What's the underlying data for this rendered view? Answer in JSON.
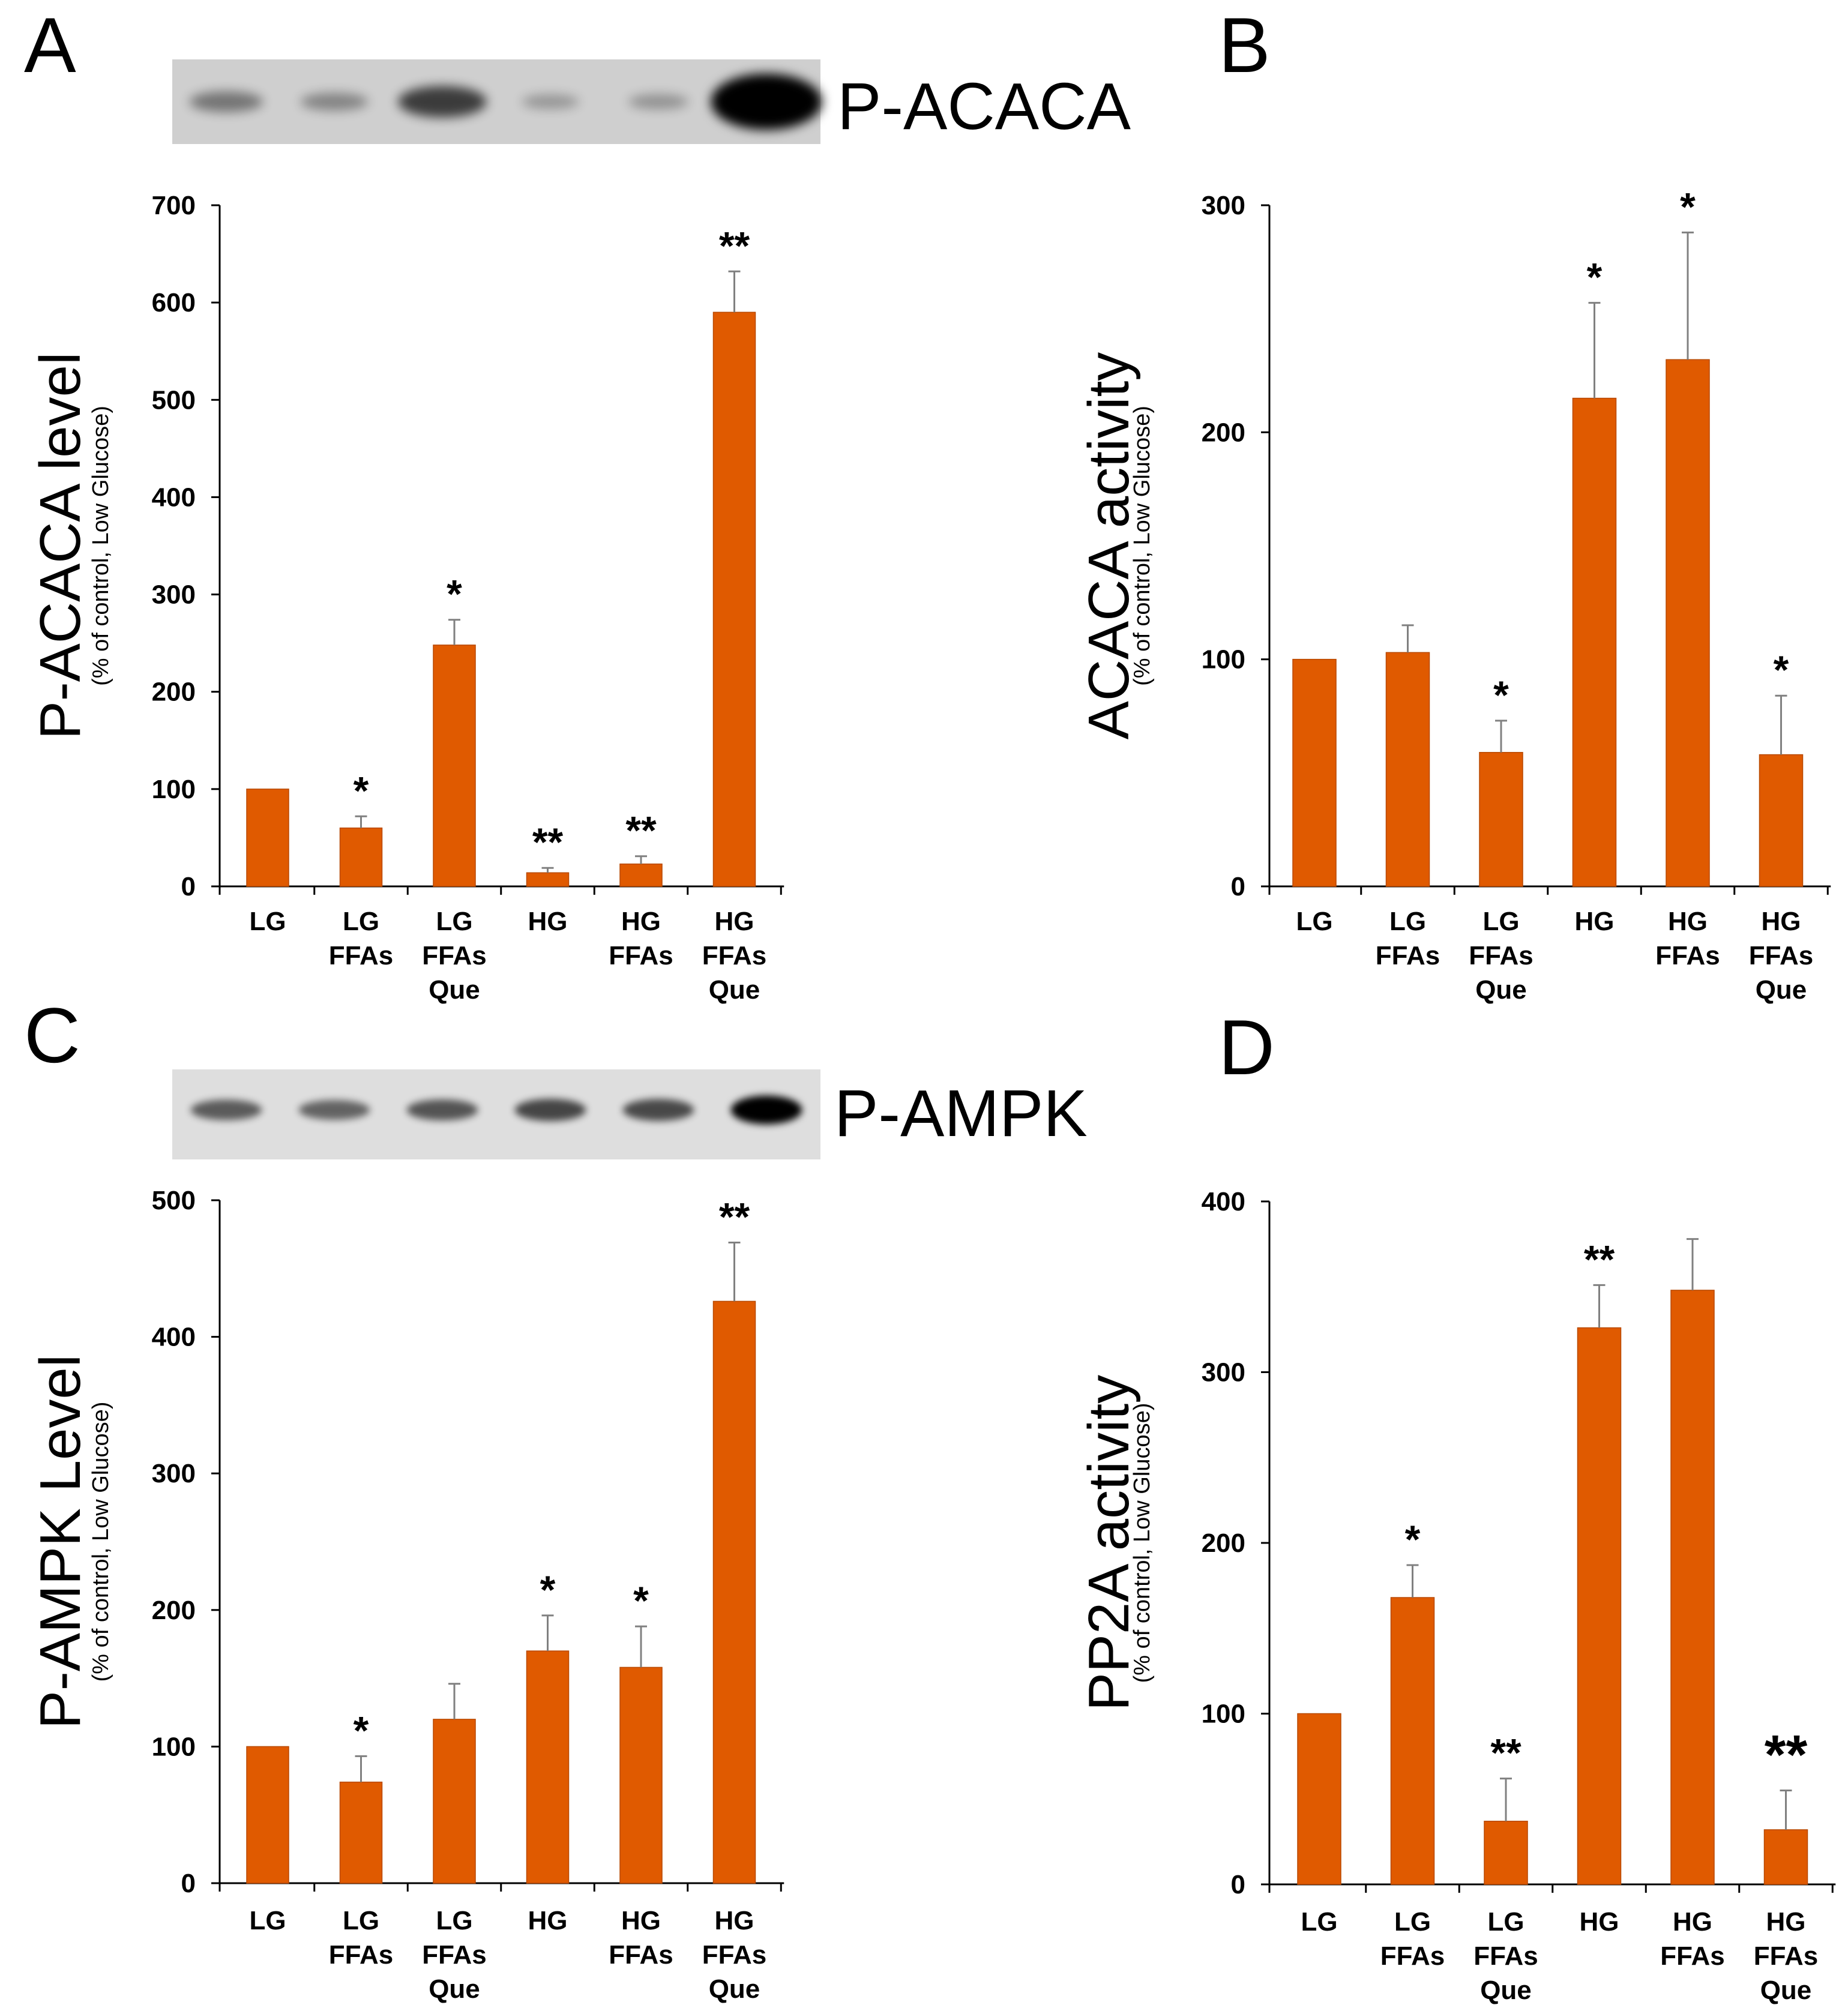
{
  "panels": [
    {
      "letter": "A",
      "blot_label": "P-ACACA",
      "blot": "dark",
      "chart_data": {
        "type": "bar",
        "categories": [
          [
            "LG"
          ],
          [
            "LG",
            "FFAs"
          ],
          [
            "LG",
            "FFAs",
            "Que"
          ],
          [
            "HG"
          ],
          [
            "HG",
            "FFAs"
          ],
          [
            "HG",
            "FFAs",
            "Que"
          ]
        ],
        "values": [
          100,
          60,
          248,
          14,
          23,
          590
        ],
        "errors": [
          0,
          12,
          26,
          5,
          8,
          42
        ],
        "significance": [
          "",
          "*",
          "*",
          "**",
          "**",
          "**"
        ],
        "ylabel": "P-ACACA level",
        "ylabel_sub": "(% of control, Low Glucose)",
        "ylim": [
          0,
          700
        ],
        "yticks": [
          0,
          100,
          200,
          300,
          400,
          500,
          600,
          700
        ],
        "bar_color": "#e05a00",
        "grid": false
      }
    },
    {
      "letter": "B",
      "chart_data": {
        "type": "bar",
        "categories": [
          [
            "LG"
          ],
          [
            "LG",
            "FFAs"
          ],
          [
            "LG",
            "FFAs",
            "Que"
          ],
          [
            "HG"
          ],
          [
            "HG",
            "FFAs"
          ],
          [
            "HG",
            "FFAs",
            "Que"
          ]
        ],
        "values": [
          100,
          103,
          59,
          215,
          232,
          58
        ],
        "errors": [
          0,
          12,
          14,
          42,
          56,
          26
        ],
        "significance": [
          "",
          "",
          "*",
          "*",
          "*",
          "*"
        ],
        "ylabel": "ACACA activity",
        "ylabel_sub": "(% of control, Low Glucose)",
        "ylim": [
          0,
          300
        ],
        "yticks": [
          0,
          100,
          200,
          300
        ],
        "bar_color": "#e05a00",
        "grid": false
      }
    },
    {
      "letter": "C",
      "blot_label": "P-AMPK",
      "blot": "light",
      "chart_data": {
        "type": "bar",
        "categories": [
          [
            "LG"
          ],
          [
            "LG",
            "FFAs"
          ],
          [
            "LG",
            "FFAs",
            "Que"
          ],
          [
            "HG"
          ],
          [
            "HG",
            "FFAs"
          ],
          [
            "HG",
            "FFAs",
            "Que"
          ]
        ],
        "values": [
          100,
          74,
          120,
          170,
          158,
          426
        ],
        "errors": [
          0,
          19,
          26,
          26,
          30,
          43
        ],
        "significance": [
          "",
          "*",
          "",
          "*",
          "*",
          "**"
        ],
        "ylabel": "P-AMPK Level",
        "ylabel_sub": "(% of control, Low Glucose)",
        "ylim": [
          0,
          500
        ],
        "yticks": [
          0,
          100,
          200,
          300,
          400,
          500
        ],
        "bar_color": "#e05a00",
        "grid": false
      }
    },
    {
      "letter": "D",
      "chart_data": {
        "type": "bar",
        "categories": [
          [
            "LG"
          ],
          [
            "LG",
            "FFAs"
          ],
          [
            "LG",
            "FFAs",
            "Que"
          ],
          [
            "HG"
          ],
          [
            "HG",
            "FFAs"
          ],
          [
            "HG",
            "FFAs",
            "Que"
          ]
        ],
        "values": [
          100,
          168,
          37,
          326,
          348,
          32
        ],
        "errors": [
          0,
          19,
          25,
          25,
          30,
          23
        ],
        "significance": [
          "",
          "*",
          "**",
          "**",
          "",
          "**"
        ],
        "ylabel": "PP2A activity",
        "ylabel_sub": "(% of control, Low Glucose)",
        "ylim": [
          0,
          400
        ],
        "yticks": [
          0,
          100,
          200,
          300,
          400
        ],
        "bar_color": "#e05a00",
        "grid": false
      }
    }
  ]
}
